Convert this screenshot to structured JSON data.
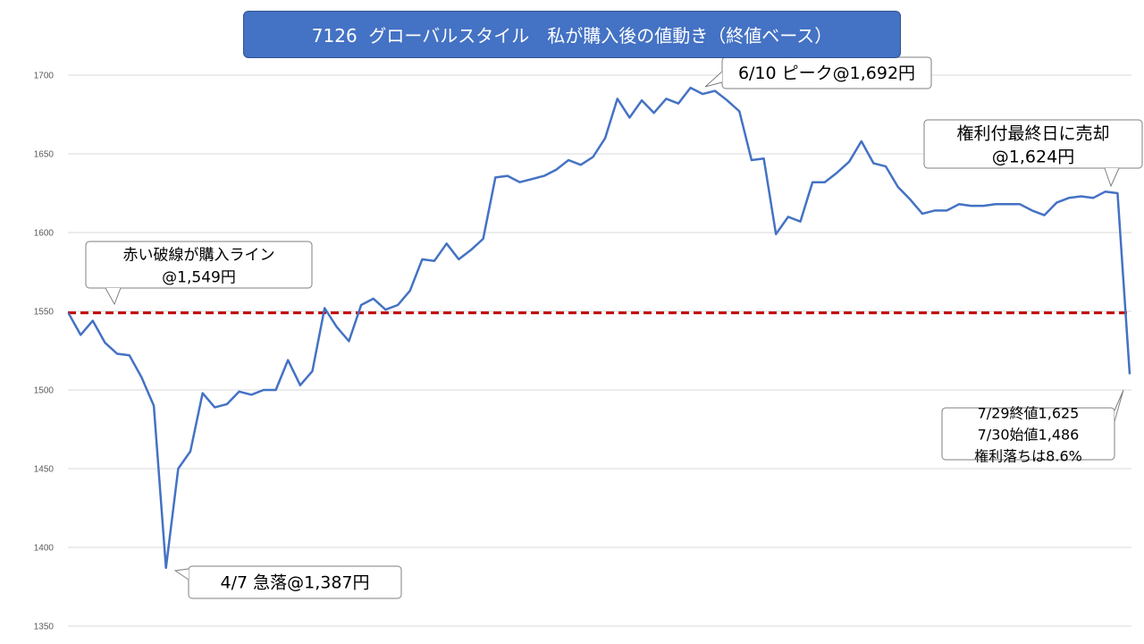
{
  "title": "7126  グローバルスタイル　私が購入後の値動き（終値ベース）",
  "colors": {
    "line": "#4472c4",
    "buy_line": "#c00000",
    "title_bg": "#4472c4",
    "grid": "#d9d9d9"
  },
  "chart_data": {
    "type": "line",
    "title": "7126  グローバルスタイル　私が購入後の値動き（終値ベース）",
    "xlabel": "",
    "ylabel": "",
    "ylim": [
      1350,
      1700
    ],
    "yticks": [
      1350,
      1400,
      1450,
      1500,
      1550,
      1600,
      1650,
      1700
    ],
    "grid": true,
    "legend": "none",
    "buy_price": 1549,
    "series": [
      {
        "values": [
          1549,
          1535,
          1544,
          1530,
          1523,
          1522,
          1508,
          1490,
          1387,
          1450,
          1461,
          1498,
          1489,
          1491,
          1499,
          1497,
          1500,
          1500,
          1519,
          1503,
          1512,
          1552,
          1540,
          1531,
          1554,
          1558,
          1551,
          1554,
          1563,
          1583,
          1582,
          1593,
          1583,
          1589,
          1596,
          1635,
          1636,
          1632,
          1634,
          1636,
          1640,
          1646,
          1643,
          1648,
          1660,
          1685,
          1673,
          1684,
          1676,
          1685,
          1682,
          1692,
          1688,
          1690,
          1684,
          1677,
          1646,
          1647,
          1599,
          1610,
          1607,
          1632,
          1632,
          1638,
          1645,
          1658,
          1644,
          1642,
          1629,
          1621,
          1612,
          1614,
          1614,
          1618,
          1617,
          1617,
          1618,
          1618,
          1618,
          1614,
          1611,
          1619,
          1622,
          1623,
          1622,
          1626,
          1625,
          1510
        ]
      }
    ],
    "annotations": [
      {
        "text_lines": [
          "赤い破線が購入ライン",
          "@1,549円"
        ]
      },
      {
        "text_lines": [
          "4/7 急落@1,387円"
        ]
      },
      {
        "text_lines": [
          "6/10 ピーク@1,692円"
        ]
      },
      {
        "text_lines": [
          "権利付最終日に売却",
          "@1,624円"
        ]
      },
      {
        "text_lines": [
          "7/29終値1,625",
          "7/30始値1,486",
          "権利落ちは8.6%"
        ]
      }
    ]
  }
}
